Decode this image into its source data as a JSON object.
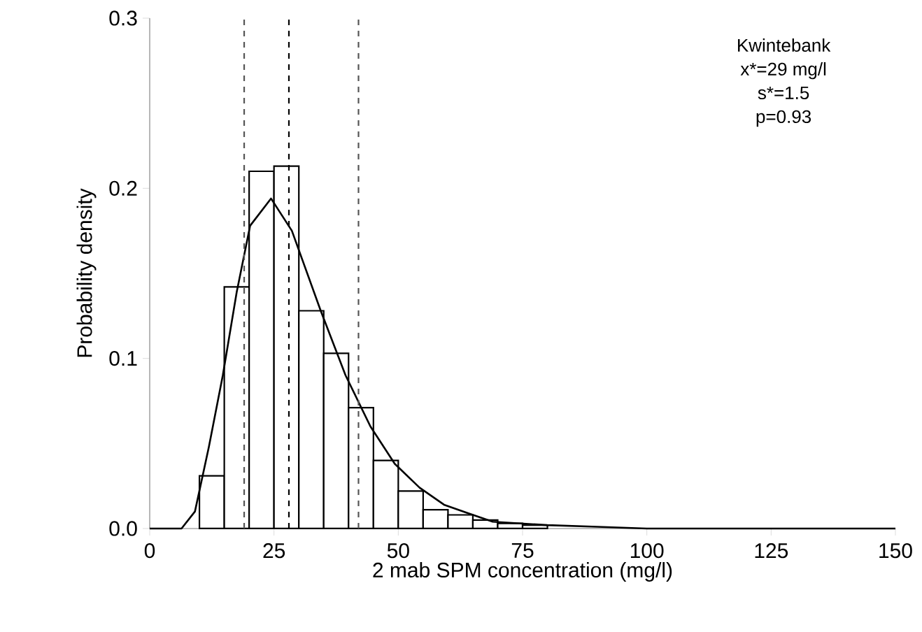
{
  "chart_data": {
    "type": "histogram",
    "xlabel": "2 mab SPM concentration (mg/l)",
    "ylabel": "Probability density",
    "xlim": [
      0,
      150
    ],
    "ylim": [
      0,
      0.3
    ],
    "xticks": [
      0,
      25,
      50,
      75,
      100,
      125,
      150
    ],
    "yticks": [
      {
        "value": 0,
        "label": "0.0"
      },
      {
        "value": 0.1,
        "label": "0.1"
      },
      {
        "value": 0.2,
        "label": "0.2"
      },
      {
        "value": 0.3,
        "label": "0.3"
      }
    ],
    "grid": false,
    "series": [
      {
        "color": "#ffffff",
        "bins": [
          10,
          15,
          20,
          25,
          30,
          35,
          40,
          45,
          50,
          55,
          60,
          65,
          70,
          75,
          80
        ],
        "values": [
          0.031,
          0.142,
          0.21,
          0.213,
          0.128,
          0.103,
          0.071,
          0.04,
          0.022,
          0.011,
          0.008,
          0.005,
          0.003,
          0.002
        ]
      },
      {
        "type": "line",
        "color": "#000000",
        "x": [
          0,
          6.4,
          9.1,
          11.9,
          14.7,
          17.5,
          20.2,
          24.4,
          28.6,
          34.4,
          39.4,
          44.4,
          49.3,
          54.3,
          59.2,
          64,
          69,
          80,
          90,
          100,
          150
        ],
        "values": [
          0,
          0,
          0.01,
          0.048,
          0.09,
          0.139,
          0.178,
          0.194,
          0.175,
          0.128,
          0.09,
          0.06,
          0.038,
          0.024,
          0.014,
          0.009,
          0.004,
          0.002,
          0.001,
          0,
          0
        ]
      }
    ],
    "ref_lines": [
      {
        "axis": "x",
        "value": 19,
        "color": "#555555",
        "line_style": "dashed"
      },
      {
        "axis": "x",
        "value": 28,
        "color": "#000000",
        "line_style": "dashed"
      },
      {
        "axis": "x",
        "value": 42,
        "color": "#555555",
        "line_style": "dashed"
      }
    ],
    "annotations": [
      "Kwintebank",
      "x*=29 mg/l",
      "s*=1.5",
      "p=0.93"
    ]
  }
}
